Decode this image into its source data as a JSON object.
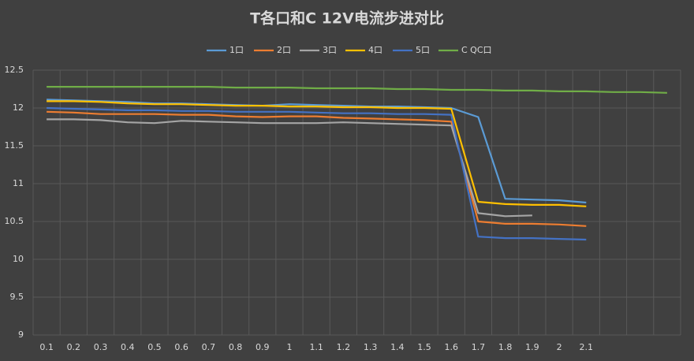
{
  "chart_data": {
    "type": "line",
    "title": "T各口和C 12V电流步进对比",
    "categories": [
      "0.1",
      "0.2",
      "0.3",
      "0.4",
      "0.5",
      "0.6",
      "0.7",
      "0.8",
      "0.9",
      "1",
      "1.1",
      "1.2",
      "1.3",
      "1.4",
      "1.5",
      "1.6",
      "1.7",
      "1.8",
      "1.9",
      "2",
      "2.1",
      null,
      null,
      null
    ],
    "series": [
      {
        "name": "1口",
        "color": "#5b9bd5",
        "values": [
          12.11,
          12.1,
          12.09,
          12.08,
          12.06,
          12.06,
          12.05,
          12.04,
          12.03,
          12.05,
          12.04,
          12.03,
          12.02,
          12.02,
          12.01,
          12.0,
          11.88,
          10.8,
          10.79,
          10.78,
          10.75,
          null,
          null,
          null
        ]
      },
      {
        "name": "2口",
        "color": "#ed7d31",
        "values": [
          11.95,
          11.94,
          11.92,
          11.92,
          11.92,
          11.91,
          11.91,
          11.89,
          11.88,
          11.89,
          11.89,
          11.87,
          11.86,
          11.85,
          11.84,
          11.82,
          10.5,
          10.47,
          10.47,
          10.46,
          10.44,
          null,
          null,
          null
        ]
      },
      {
        "name": "3口",
        "color": "#a5a5a5",
        "values": [
          11.85,
          11.85,
          11.84,
          11.81,
          11.8,
          11.83,
          11.82,
          11.81,
          11.8,
          11.8,
          11.8,
          11.81,
          11.8,
          11.79,
          11.78,
          11.77,
          10.61,
          10.57,
          10.58,
          null,
          null,
          null,
          null,
          null
        ]
      },
      {
        "name": "4口",
        "color": "#ffc000",
        "values": [
          12.09,
          12.09,
          12.08,
          12.06,
          12.05,
          12.05,
          12.04,
          12.03,
          12.03,
          12.02,
          12.02,
          12.01,
          12.01,
          12.0,
          12.0,
          11.99,
          10.76,
          10.73,
          10.72,
          10.72,
          10.7,
          null,
          null,
          null
        ]
      },
      {
        "name": "5口",
        "color": "#4472c4",
        "values": [
          12.0,
          11.99,
          11.98,
          11.97,
          11.97,
          11.96,
          11.96,
          11.95,
          11.95,
          11.95,
          11.94,
          11.93,
          11.93,
          11.92,
          11.92,
          11.91,
          10.3,
          10.28,
          10.28,
          10.27,
          10.26,
          null,
          null,
          null
        ]
      },
      {
        "name": "C QC口",
        "color": "#70ad47",
        "values": [
          12.28,
          12.28,
          12.28,
          12.28,
          12.28,
          12.28,
          12.28,
          12.27,
          12.27,
          12.27,
          12.26,
          12.26,
          12.26,
          12.25,
          12.25,
          12.24,
          12.24,
          12.23,
          12.23,
          12.22,
          12.22,
          12.21,
          12.21,
          12.2
        ]
      }
    ],
    "ylim": [
      9,
      12.5
    ],
    "yticks": [
      9,
      9.5,
      10,
      10.5,
      11,
      11.5,
      12,
      12.5
    ],
    "grid": true,
    "legend": "top"
  }
}
